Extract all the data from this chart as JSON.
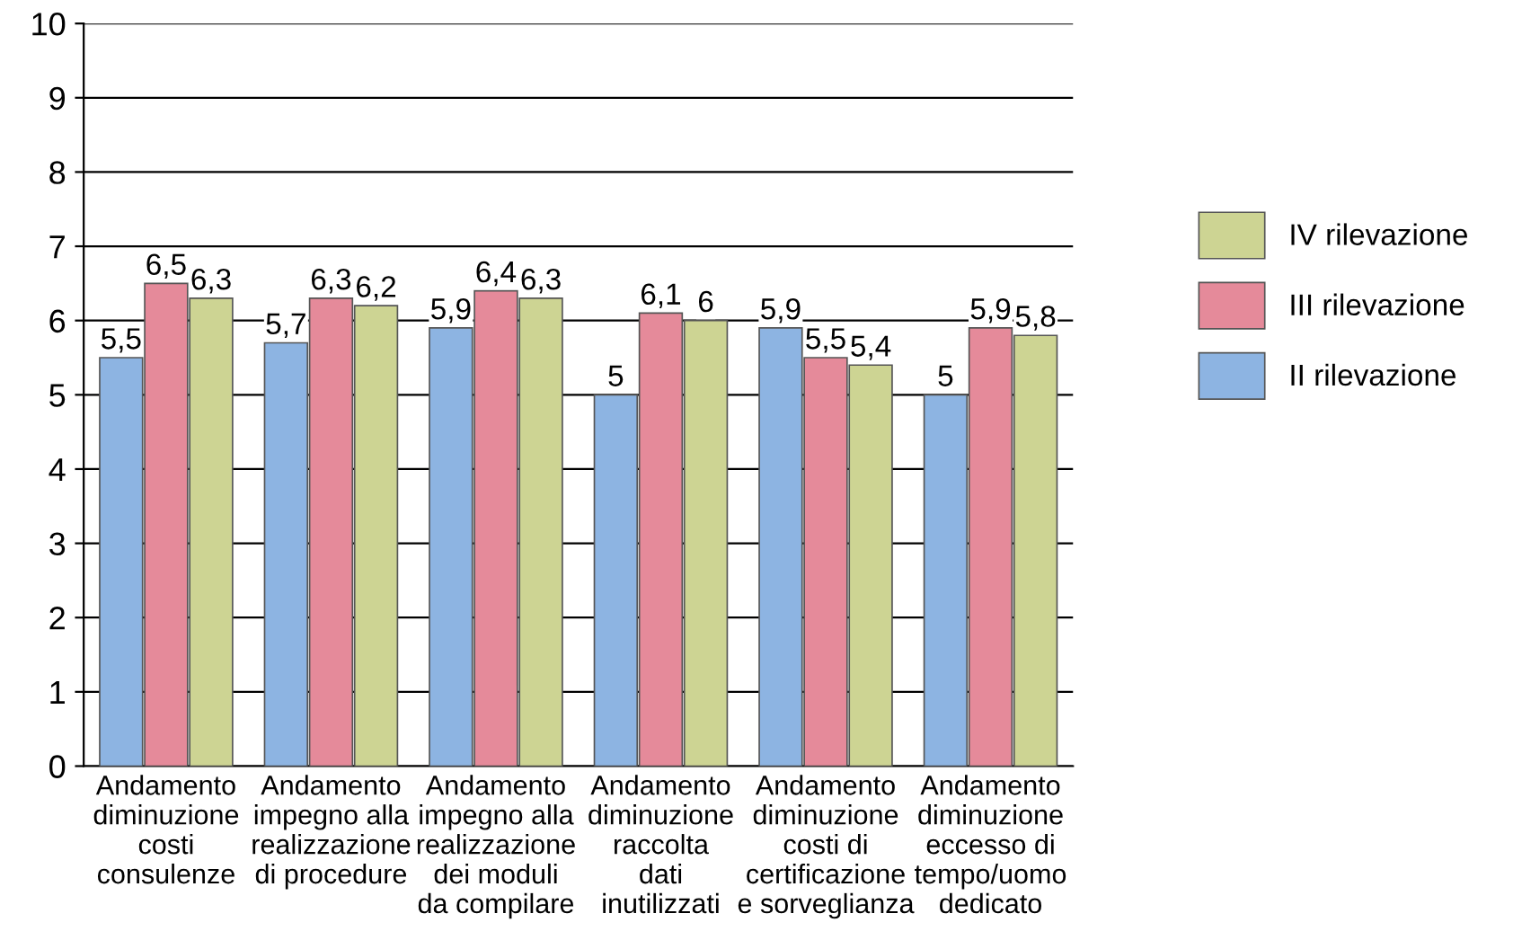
{
  "chart_data": {
    "type": "bar",
    "categories": [
      "Andamento\ndiminuzione\ncosti\nconsulenze",
      "Andamento\nimpegno alla\nrealizzazione\ndi procedure",
      "Andamento\nimpegno alla\nrealizzazione\ndei moduli\nda compilare",
      "Andamento\ndiminuzione\nraccolta\ndati\ninutilizzati",
      "Andamento\ndiminuzione\ncosti di\ncertificazione\ne sorveglianza",
      "Andamento\ndiminuzione\neccesso di\ntempo/uomo\ndedicato"
    ],
    "series": [
      {
        "name": "II rilevazione",
        "color": "#8db4e2",
        "values": [
          5.5,
          5.7,
          5.9,
          5,
          5.9,
          5
        ],
        "value_labels": [
          "5,5",
          "5,7",
          "5,9",
          "5",
          "5,9",
          "5"
        ]
      },
      {
        "name": "III rilevazione",
        "color": "#e58a9a",
        "values": [
          6.5,
          6.3,
          6.4,
          6.1,
          5.5,
          5.9
        ],
        "value_labels": [
          "6,5",
          "6,3",
          "6,4",
          "6,1",
          "5,5",
          "5,9"
        ]
      },
      {
        "name": "IV rilevazione",
        "color": "#cdd493",
        "values": [
          6.3,
          6.2,
          6.3,
          6,
          5.4,
          5.8
        ],
        "value_labels": [
          "6,3",
          "6,2",
          "6,3",
          "6",
          "5,4",
          "5,8"
        ]
      }
    ],
    "ylim": [
      0,
      10
    ],
    "yticks": [
      0,
      1,
      2,
      3,
      4,
      5,
      6,
      7,
      8,
      9,
      10
    ],
    "grid": "y",
    "legend": "right"
  }
}
